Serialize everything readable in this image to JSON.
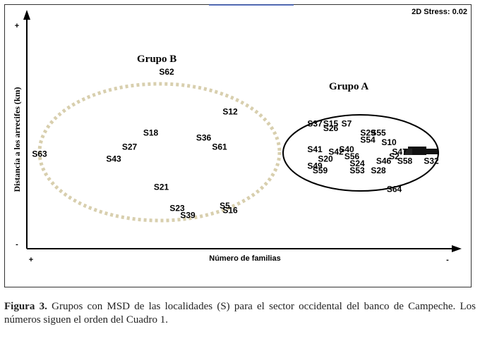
{
  "chart_data": {
    "type": "scatter",
    "title": "",
    "stress_label": "2D Stress: 0.02",
    "xlabel": "Número de familias",
    "ylabel": "Distancia a los arrecifes (km)",
    "x_ticks": {
      "left": "+",
      "right": "-"
    },
    "y_ticks": {
      "top": "+",
      "bottom": "-"
    },
    "groups": [
      {
        "name": "Grupo B",
        "style": "dotted",
        "color": "#d8cfae"
      },
      {
        "name": "Grupo A",
        "style": "solid",
        "color": "#000000"
      }
    ],
    "points": [
      {
        "label": "S63",
        "x": -2.8,
        "y": 0.35
      },
      {
        "label": "S62",
        "x": -1.6,
        "y": 2.1
      },
      {
        "label": "S12",
        "x": -1.0,
        "y": 1.25
      },
      {
        "label": "S18",
        "x": -1.75,
        "y": 0.8
      },
      {
        "label": "S36",
        "x": -1.25,
        "y": 0.7
      },
      {
        "label": "S27",
        "x": -1.95,
        "y": 0.5
      },
      {
        "label": "S61",
        "x": -1.1,
        "y": 0.5
      },
      {
        "label": "S43",
        "x": -2.1,
        "y": 0.25
      },
      {
        "label": "S21",
        "x": -1.65,
        "y": -0.35
      },
      {
        "label": "S23",
        "x": -1.5,
        "y": -0.8
      },
      {
        "label": "S5",
        "x": -1.05,
        "y": -0.75
      },
      {
        "label": "S16",
        "x": -1.0,
        "y": -0.85
      },
      {
        "label": "S39",
        "x": -1.4,
        "y": -0.95
      },
      {
        "label": "S37",
        "x": -0.2,
        "y": 1.0
      },
      {
        "label": "S15",
        "x": -0.05,
        "y": 1.0
      },
      {
        "label": "S7",
        "x": 0.1,
        "y": 1.0
      },
      {
        "label": "S26",
        "x": -0.05,
        "y": 0.9
      },
      {
        "label": "S29",
        "x": 0.3,
        "y": 0.8
      },
      {
        "label": "S55",
        "x": 0.4,
        "y": 0.8
      },
      {
        "label": "S54",
        "x": 0.3,
        "y": 0.65
      },
      {
        "label": "S10",
        "x": 0.5,
        "y": 0.6
      },
      {
        "label": "S41",
        "x": -0.2,
        "y": 0.45
      },
      {
        "label": "S42",
        "x": 0.0,
        "y": 0.4
      },
      {
        "label": "S40",
        "x": 0.1,
        "y": 0.45
      },
      {
        "label": "S20",
        "x": -0.1,
        "y": 0.25
      },
      {
        "label": "S56",
        "x": 0.15,
        "y": 0.3
      },
      {
        "label": "S47",
        "x": 0.6,
        "y": 0.4
      },
      {
        "label": "S2",
        "x": 0.55,
        "y": 0.3
      },
      {
        "label": "S24",
        "x": 0.2,
        "y": 0.15
      },
      {
        "label": "S46",
        "x": 0.45,
        "y": 0.2
      },
      {
        "label": "S58",
        "x": 0.65,
        "y": 0.2
      },
      {
        "label": "S49",
        "x": -0.2,
        "y": 0.1
      },
      {
        "label": "S59",
        "x": -0.15,
        "y": 0.0
      },
      {
        "label": "S53",
        "x": 0.2,
        "y": 0.0
      },
      {
        "label": "S28",
        "x": 0.4,
        "y": 0.0
      },
      {
        "label": "S32",
        "x": 0.9,
        "y": 0.2
      },
      {
        "label": "S64",
        "x": 0.55,
        "y": -0.4
      }
    ]
  },
  "caption": {
    "label": "Figura 3.",
    "text": " Grupos con MSD de las localidades (S) para el sector occidental del banco de Campeche. Los números siguen el orden del Cuadro 1."
  }
}
